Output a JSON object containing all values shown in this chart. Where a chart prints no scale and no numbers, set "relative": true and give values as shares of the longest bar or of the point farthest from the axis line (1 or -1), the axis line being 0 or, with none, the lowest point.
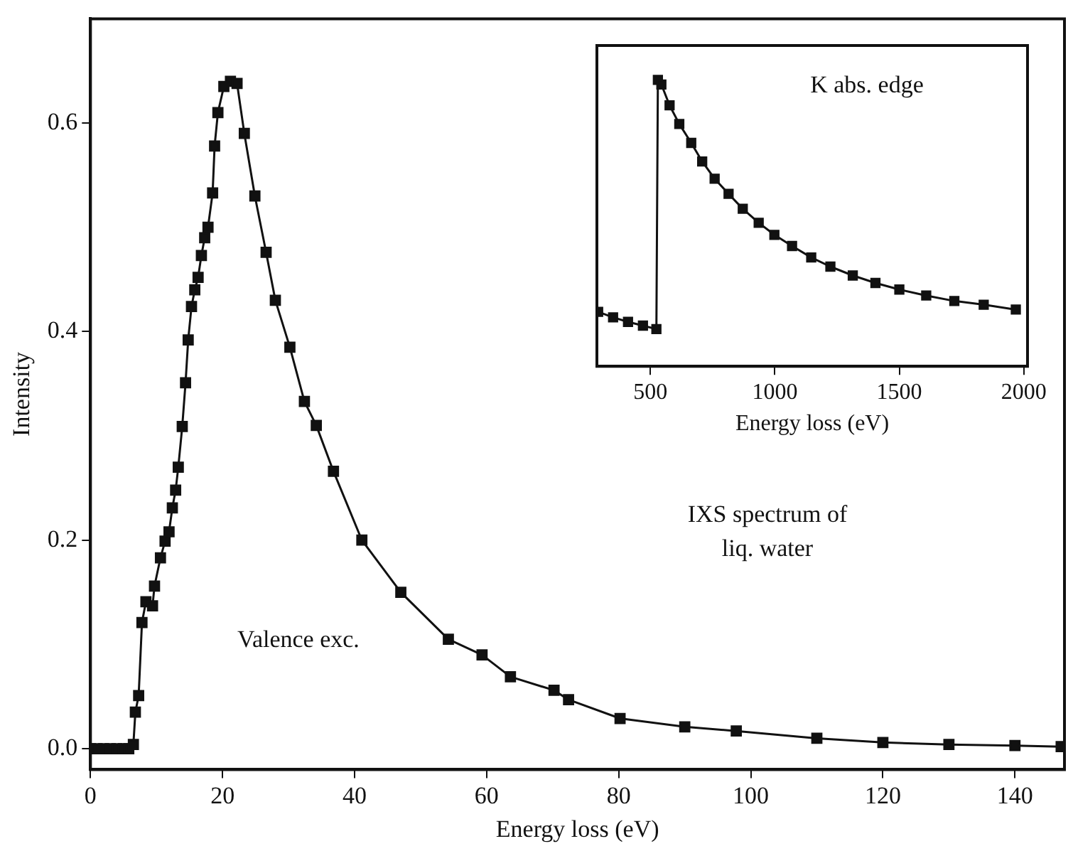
{
  "chart_data": [
    {
      "type": "line",
      "xlabel": "Energy loss (eV)",
      "ylabel": "Intensity",
      "xlim": [
        0,
        147.5
      ],
      "ylim": [
        -0.02,
        0.7
      ],
      "xticks": [
        0,
        20,
        40,
        60,
        80,
        100,
        120,
        140
      ],
      "yticks": [
        {
          "value": 0,
          "label": "0.0"
        },
        0.2,
        0.4,
        0.6
      ],
      "marker": "square",
      "line_style": "solid",
      "grid": false,
      "legend": false,
      "annotations": [
        "Valence exc.",
        "IXS spectrum of liq. water"
      ],
      "series": [
        {
          "color": "#111111",
          "x": [
            0,
            1,
            2,
            3,
            4,
            5,
            5.8,
            6.5,
            6.8,
            7.3,
            7.8,
            8.4,
            9.4,
            9.7,
            10.6,
            11.3,
            11.9,
            12.4,
            12.9,
            13.3,
            13.9,
            14.4,
            14.8,
            15.3,
            15.8,
            16.3,
            16.8,
            17.3,
            17.8,
            18.5,
            18.8,
            19.3,
            20.2,
            21.2,
            22.2,
            23.3,
            24.9,
            26.6,
            28,
            30.2,
            32.4,
            34.2,
            36.8,
            41.1,
            47,
            54.2,
            59.3,
            63.6,
            70.2,
            72.4,
            80.2,
            90,
            97.8,
            110,
            120,
            130,
            140,
            147
          ],
          "values": [
            0,
            0,
            0,
            0,
            0,
            0,
            0,
            0.004,
            0.035,
            0.051,
            0.121,
            0.141,
            0.137,
            0.156,
            0.183,
            0.199,
            0.208,
            0.231,
            0.248,
            0.27,
            0.309,
            0.351,
            0.392,
            0.424,
            0.44,
            0.452,
            0.473,
            0.49,
            0.5,
            0.533,
            0.578,
            0.61,
            0.635,
            0.64,
            0.638,
            0.59,
            0.53,
            0.476,
            0.43,
            0.385,
            0.333,
            0.31,
            0.266,
            0.2,
            0.15,
            0.105,
            0.09,
            0.069,
            0.056,
            0.047,
            0.029,
            0.021,
            0.017,
            0.01,
            0.006,
            0.004,
            0.003,
            0.002
          ]
        }
      ]
    },
    {
      "type": "line",
      "relative": true,
      "xlabel": "Energy loss (eV)",
      "xlim": [
        285,
        2015
      ],
      "xticks": [
        500,
        1000,
        1500,
        2000
      ],
      "marker": "square",
      "line_style": "solid",
      "grid": false,
      "legend": false,
      "annotations": [
        "K abs. edge"
      ],
      "series": [
        {
          "color": "#111111",
          "x": [
            290,
            350,
            410,
            470,
            524,
            530,
            544,
            577,
            616,
            664,
            708,
            758,
            814,
            871,
            935,
            998,
            1069,
            1146,
            1223,
            1313,
            1404,
            1500,
            1608,
            1721,
            1839,
            1968
          ],
          "values": [
            0.19,
            0.171,
            0.155,
            0.142,
            0.13,
            1,
            0.984,
            0.911,
            0.846,
            0.78,
            0.715,
            0.655,
            0.602,
            0.55,
            0.501,
            0.459,
            0.42,
            0.38,
            0.348,
            0.317,
            0.291,
            0.268,
            0.247,
            0.228,
            0.215,
            0.198
          ]
        }
      ]
    }
  ]
}
